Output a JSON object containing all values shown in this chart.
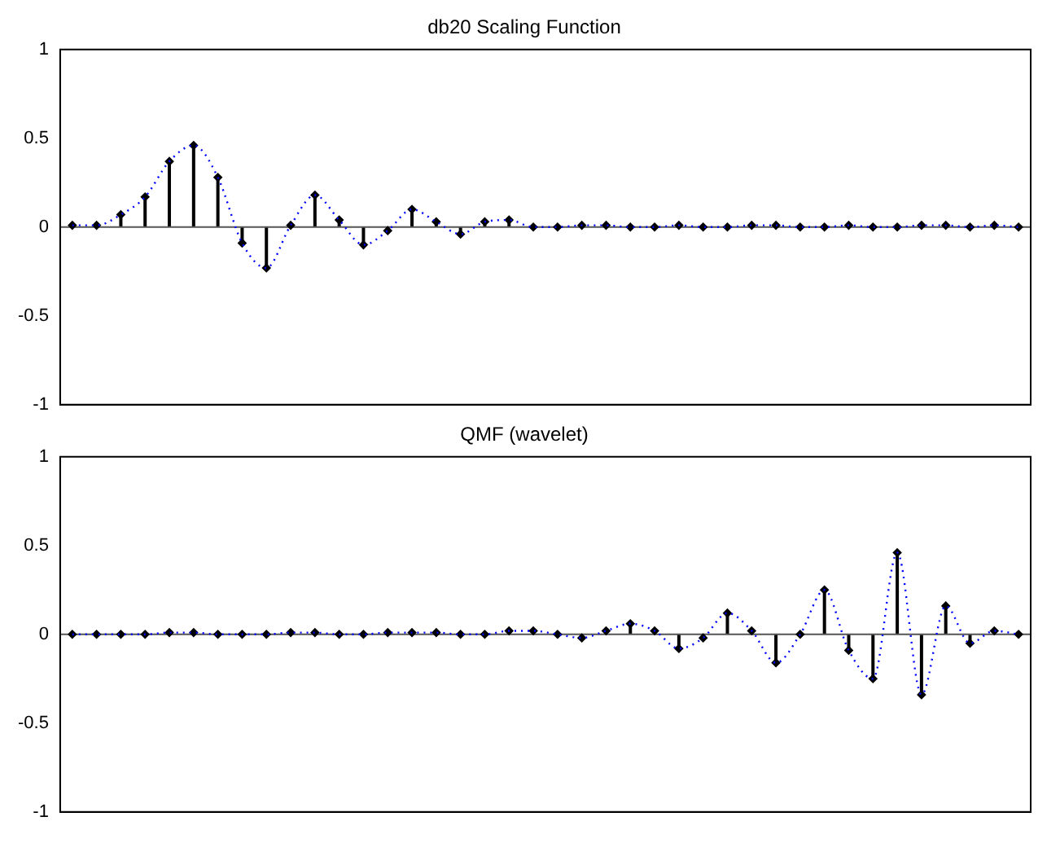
{
  "chart_data": [
    {
      "type": "lollipop",
      "title": "db20 Scaling Function",
      "categories": [
        null,
        null,
        null,
        null,
        null,
        null,
        null,
        null,
        null,
        null,
        null,
        null,
        null,
        null,
        null,
        null,
        null,
        null,
        null,
        null,
        null,
        null,
        null,
        null,
        null,
        null,
        null,
        null,
        null,
        null,
        null,
        null,
        null,
        null,
        null,
        null,
        null,
        null,
        null,
        null
      ],
      "ylim": [
        -1,
        1
      ],
      "yticks": [
        -1,
        -0.5,
        0,
        0.5,
        1
      ],
      "grid": false,
      "tick_labels": "y",
      "legend": false,
      "marker": "diamond",
      "ref_lines": [
        {
          "axis": "y",
          "value": 0,
          "color": "#555555"
        }
      ],
      "series": [
        {
          "type": "line",
          "color": "#0000ff",
          "line_style": "dotted",
          "marker": "none",
          "values": [
            0.01,
            0.01,
            0.07,
            0.17,
            0.37,
            0.46,
            0.28,
            -0.09,
            -0.23,
            0.01,
            0.18,
            0.04,
            -0.1,
            -0.02,
            0.1,
            0.03,
            -0.04,
            0.03,
            0.04,
            0.0,
            0.0,
            0.01,
            0.01,
            0.0,
            0.0,
            0.01,
            0.0,
            0.0,
            0.01,
            0.01,
            0.0,
            0.0,
            0.01,
            0.0,
            0.0,
            0.01,
            0.01,
            0.0,
            0.01,
            0.0
          ]
        },
        {
          "type": "lollipop",
          "color": "#000000",
          "values": [
            0.01,
            0.01,
            0.07,
            0.17,
            0.37,
            0.46,
            0.28,
            -0.09,
            -0.23,
            0.01,
            0.18,
            0.04,
            -0.1,
            -0.02,
            0.1,
            0.03,
            -0.04,
            0.03,
            0.04,
            0.0,
            0.0,
            0.01,
            0.01,
            0.0,
            0.0,
            0.01,
            0.0,
            0.0,
            0.01,
            0.01,
            0.0,
            0.0,
            0.01,
            0.0,
            0.0,
            0.01,
            0.01,
            0.0,
            0.01,
            0.0
          ]
        }
      ]
    },
    {
      "type": "lollipop",
      "title": "QMF (wavelet)",
      "categories": [
        null,
        null,
        null,
        null,
        null,
        null,
        null,
        null,
        null,
        null,
        null,
        null,
        null,
        null,
        null,
        null,
        null,
        null,
        null,
        null,
        null,
        null,
        null,
        null,
        null,
        null,
        null,
        null,
        null,
        null,
        null,
        null,
        null,
        null,
        null,
        null,
        null,
        null,
        null,
        null
      ],
      "ylim": [
        -1,
        1
      ],
      "yticks": [
        -1,
        -0.5,
        0,
        0.5,
        1
      ],
      "grid": false,
      "tick_labels": "y",
      "legend": false,
      "marker": "diamond",
      "ref_lines": [
        {
          "axis": "y",
          "value": 0,
          "color": "#555555"
        }
      ],
      "series": [
        {
          "type": "line",
          "color": "#0000ff",
          "line_style": "dotted",
          "marker": "none",
          "values": [
            0.0,
            0.0,
            0.0,
            0.0,
            0.01,
            0.01,
            0.0,
            0.0,
            0.0,
            0.01,
            0.01,
            0.0,
            0.0,
            0.01,
            0.01,
            0.01,
            0.0,
            0.0,
            0.02,
            0.02,
            0.0,
            -0.02,
            0.02,
            0.06,
            0.02,
            -0.08,
            -0.02,
            0.12,
            0.02,
            -0.16,
            0.0,
            0.25,
            -0.09,
            -0.25,
            0.46,
            -0.34,
            0.16,
            -0.05,
            0.02,
            0.0
          ]
        },
        {
          "type": "lollipop",
          "color": "#000000",
          "values": [
            0.0,
            0.0,
            0.0,
            0.0,
            0.01,
            0.01,
            0.0,
            0.0,
            0.0,
            0.01,
            0.01,
            0.0,
            0.0,
            0.01,
            0.01,
            0.01,
            0.0,
            0.0,
            0.02,
            0.02,
            0.0,
            -0.02,
            0.02,
            0.06,
            0.02,
            -0.08,
            -0.02,
            0.12,
            0.02,
            -0.16,
            0.0,
            0.25,
            -0.09,
            -0.25,
            0.46,
            -0.34,
            0.16,
            -0.05,
            0.02,
            0.0
          ]
        }
      ]
    }
  ]
}
